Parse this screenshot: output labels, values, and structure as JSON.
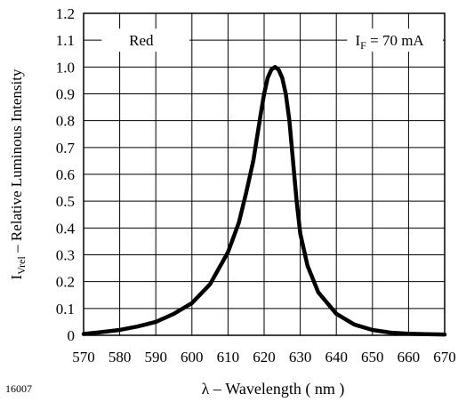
{
  "figure_code": "16007",
  "chart_data": {
    "type": "line",
    "xlabel": "λ – Wavelength ( nm )",
    "ylabel": {
      "main": "I",
      "sub": "Vrel",
      "rest": " – Relative Luminous Intensity"
    },
    "xlim": [
      570,
      670
    ],
    "ylim": [
      0,
      1.2
    ],
    "xticks": [
      570,
      580,
      590,
      600,
      610,
      620,
      630,
      640,
      650,
      660,
      670
    ],
    "yticks": [
      "0",
      "0.1",
      "0.2",
      "0.3",
      "0.4",
      "0.5",
      "0.6",
      "0.7",
      "0.8",
      "0.9",
      "1.0",
      "1.1",
      "1.2"
    ],
    "grid": true,
    "annotations": {
      "series_label": "Red",
      "condition": {
        "main": "I",
        "sub": "F",
        "rest": " = 70 mA"
      }
    },
    "series": [
      {
        "color": "#000000",
        "x": [
          570,
          575,
          580,
          585,
          590,
          595,
          600,
          605,
          610,
          613,
          615,
          617,
          619,
          620,
          621,
          622,
          623,
          624,
          625,
          626,
          627,
          628,
          629,
          630,
          632,
          635,
          640,
          645,
          650,
          655,
          660,
          665,
          670
        ],
        "y": [
          0.005,
          0.012,
          0.02,
          0.033,
          0.05,
          0.08,
          0.12,
          0.19,
          0.31,
          0.42,
          0.53,
          0.65,
          0.82,
          0.9,
          0.96,
          0.99,
          1.0,
          0.99,
          0.96,
          0.9,
          0.8,
          0.65,
          0.5,
          0.38,
          0.26,
          0.16,
          0.08,
          0.04,
          0.02,
          0.01,
          0.006,
          0.004,
          0.003
        ]
      }
    ]
  }
}
